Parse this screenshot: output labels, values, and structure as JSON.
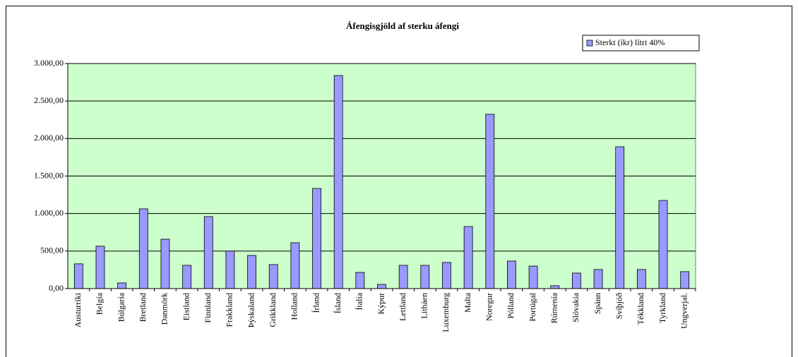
{
  "chart_data": {
    "type": "bar",
    "title": "Áfengisgjöld af sterku áfengi",
    "categories": [
      "Austurríki",
      "Belgía",
      "Búlgaría",
      "Bretland",
      "Danmörk",
      "Eistland",
      "Finnland",
      "Frakkland",
      "Þýskaland",
      "Grikkland",
      "Holland",
      "Írland",
      "Ísland",
      "Ítalía",
      "Kýpur",
      "Lettland",
      "Litháen",
      "Luxemburg",
      "Malta",
      "Noregur",
      "Pólland",
      "Portúgal",
      "Rúmenía",
      "Slóvakía",
      "Spánn",
      "Svíþjóð",
      "Tékkland",
      "Tyrkland",
      "Ungverjal."
    ],
    "series": [
      {
        "name": "Sterkt (íkr) lítri 40%",
        "color": "#9999ff",
        "values": [
          330,
          565,
          75,
          1063,
          658,
          310,
          960,
          500,
          442,
          320,
          611,
          1335,
          2840,
          216,
          56,
          310,
          310,
          348,
          827,
          2323,
          367,
          300,
          38,
          207,
          254,
          1890,
          254,
          1175,
          226
        ]
      }
    ],
    "ylim": [
      0,
      3000
    ],
    "yticks": [
      {
        "value": 0,
        "label": "0,00"
      },
      {
        "value": 500,
        "label": "500,00"
      },
      {
        "value": 1000,
        "label": "1.000,00"
      },
      {
        "value": 1500,
        "label": "1.500,00"
      },
      {
        "value": 2000,
        "label": "2.000,00"
      },
      {
        "value": 2500,
        "label": "2.500,00"
      },
      {
        "value": 3000,
        "label": "3.000,00"
      }
    ],
    "grid": true,
    "plot_color": "#ccffcc",
    "legend": "top-right"
  }
}
